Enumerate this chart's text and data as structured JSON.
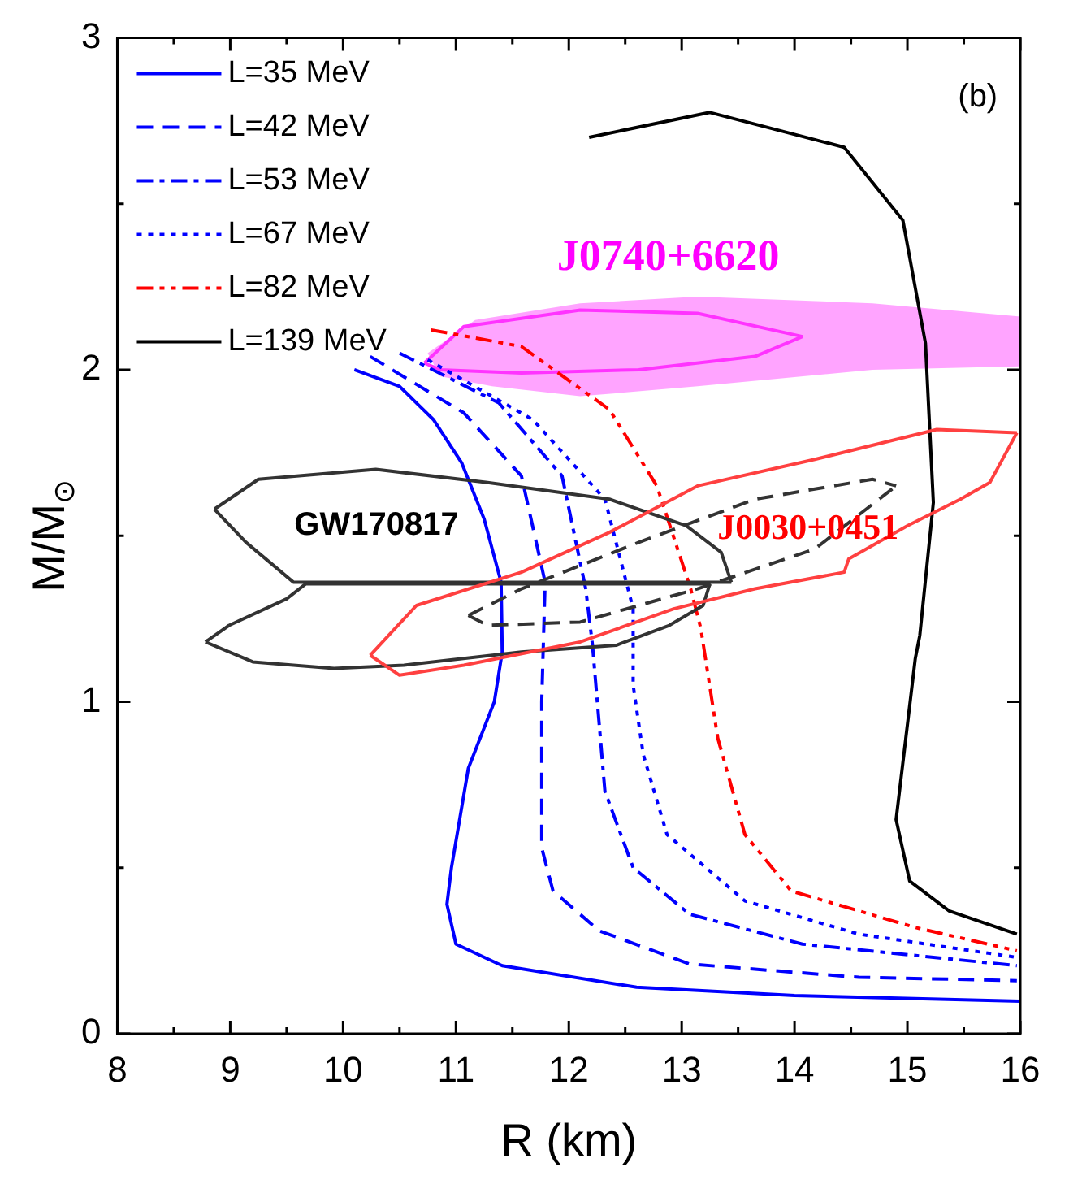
{
  "chart_data": {
    "type": "line",
    "xlabel": "R (km)",
    "ylabel": "M/M$_{⊙}$",
    "xlim": [
      8,
      16
    ],
    "ylim": [
      0,
      3
    ],
    "xticks": [
      8,
      {
        "value": 8.5,
        "label": null
      },
      9,
      {
        "value": 9.5,
        "label": null
      },
      10,
      {
        "value": 10.5,
        "label": null
      },
      11,
      {
        "value": 11.5,
        "label": null
      },
      12,
      {
        "value": 12.5,
        "label": null
      },
      13,
      {
        "value": 13.5,
        "label": null
      },
      14,
      {
        "value": 14.5,
        "label": null
      },
      15,
      {
        "value": 15.5,
        "label": null
      },
      16
    ],
    "yticks": [
      0,
      {
        "value": 0.5,
        "label": null
      },
      1,
      {
        "value": 1.5,
        "label": null
      },
      2,
      {
        "value": 2.5,
        "label": null
      },
      3
    ],
    "legend": "top left",
    "marker": "none",
    "series": [
      {
        "type": "area",
        "color": "#ff77ff",
        "x": [
          10.75,
          11.17,
          12.1,
          13.14,
          14.69,
          16,
          16,
          14.69,
          13.14,
          12.1,
          11.32,
          10.86,
          10.75
        ],
        "values": [
          2.05,
          2.15,
          2.2,
          2.22,
          2.2,
          2.16,
          2.01,
          2.0,
          1.95,
          1.92,
          1.95,
          1.98,
          2.05
        ]
      },
      {
        "color": "#ff33ff",
        "line_style": "solid",
        "x": [
          10.72,
          11.07,
          12.1,
          13.14,
          14.07
        ],
        "values": [
          2.02,
          2.13,
          2.18,
          2.17,
          2.1
        ]
      },
      {
        "color": "#ff33ff",
        "line_style": "solid",
        "x": [
          10.72,
          10.86,
          11.58,
          12.62,
          13.65,
          14.07
        ],
        "values": [
          2.02,
          2.0,
          1.99,
          2.0,
          2.04,
          2.1
        ]
      },
      {
        "name": "L=35 MeV",
        "color": "#0000ff",
        "line_style": "solid",
        "x": [
          10.1,
          10.5,
          10.8,
          11.05,
          11.25,
          11.4,
          11.41,
          11.34,
          11.11,
          10.96,
          10.92,
          11.0,
          11.41,
          12.6,
          14,
          16
        ],
        "values": [
          2.0,
          1.95,
          1.85,
          1.72,
          1.55,
          1.36,
          1.15,
          1.0,
          0.8,
          0.5,
          0.39,
          0.27,
          0.205,
          0.14,
          0.115,
          0.098
        ]
      },
      {
        "name": "L=42 MeV",
        "color": "#0000ff",
        "line_style": "dashed",
        "x": [
          10.24,
          11.07,
          11.58,
          11.79,
          11.76,
          11.76,
          11.86,
          12.27,
          13.07,
          14.57,
          15.97
        ],
        "values": [
          2.04,
          1.87,
          1.68,
          1.36,
          1.0,
          0.56,
          0.43,
          0.31,
          0.21,
          0.17,
          0.16
        ]
      },
      {
        "name": "L=53 MeV",
        "color": "#0000ff",
        "line_style": "dashdot",
        "x": [
          10.5,
          11.38,
          11.94,
          12.15,
          12.21,
          12.32,
          12.57,
          13.07,
          14.07,
          15.97
        ],
        "values": [
          2.05,
          1.9,
          1.68,
          1.34,
          1.17,
          0.73,
          0.5,
          0.36,
          0.27,
          0.205
        ]
      },
      {
        "name": "L=67 MeV",
        "color": "#0000ff",
        "line_style": "dotted",
        "x": [
          10.75,
          11.68,
          12.32,
          12.57,
          12.57,
          12.66,
          12.87,
          13.56,
          14.57,
          15.97
        ],
        "values": [
          2.03,
          1.85,
          1.61,
          1.28,
          1.05,
          0.84,
          0.6,
          0.4,
          0.3,
          0.23
        ]
      },
      {
        "name": "L=82 MeV",
        "color": "#ff0000",
        "line_style": "dashdotdot",
        "x": [
          10.78,
          11.58,
          12.36,
          12.78,
          13.08,
          13.17,
          13.32,
          13.56,
          13.97,
          15.07,
          15.97
        ],
        "values": [
          2.12,
          2.07,
          1.88,
          1.65,
          1.34,
          1.22,
          0.89,
          0.6,
          0.43,
          0.32,
          0.25
        ]
      },
      {
        "name": "L=139 MeV",
        "color": "#000000",
        "line_style": "solid",
        "x": [
          12.18,
          13.25,
          14.44,
          14.96,
          15.16,
          15.23,
          15.11,
          15.07,
          14.9,
          15.02,
          15.37,
          15.97
        ],
        "values": [
          2.7,
          2.775,
          2.67,
          2.45,
          2.08,
          1.6,
          1.2,
          1.13,
          0.645,
          0.46,
          0.37,
          0.3
        ]
      },
      {
        "color": "#333333",
        "line_style": "solid",
        "x": [
          8.86,
          9.25,
          10.29,
          11.28,
          12.36,
          13.04,
          13.35,
          13.44
        ],
        "values": [
          1.58,
          1.67,
          1.7,
          1.66,
          1.61,
          1.53,
          1.45,
          1.36
        ]
      },
      {
        "color": "#333333",
        "line_style": "solid",
        "x": [
          8.86,
          9.14,
          9.56,
          13.44
        ],
        "values": [
          1.58,
          1.48,
          1.36,
          1.36
        ]
      },
      {
        "color": "#333333",
        "line_style": "solid",
        "x": [
          8.78,
          8.99,
          9.5,
          9.67,
          13.25
        ],
        "values": [
          1.18,
          1.23,
          1.31,
          1.355,
          1.355
        ]
      },
      {
        "color": "#333333",
        "line_style": "solid",
        "x": [
          8.78,
          9.2,
          9.92,
          10.54,
          11.58,
          12.42,
          12.89,
          13.19,
          13.25
        ],
        "values": [
          1.18,
          1.12,
          1.1,
          1.11,
          1.15,
          1.17,
          1.23,
          1.29,
          1.355
        ]
      },
      {
        "color": "#ff4040",
        "line_style": "solid",
        "x": [
          10.24,
          10.65,
          11.58,
          12.36,
          13.14,
          14.18,
          15.26,
          15.97
        ],
        "values": [
          1.14,
          1.29,
          1.39,
          1.51,
          1.65,
          1.73,
          1.82,
          1.81
        ]
      },
      {
        "color": "#ff4040",
        "line_style": "solid",
        "x": [
          10.24,
          10.5,
          11.07,
          12.1,
          12.93,
          13.65,
          14.44,
          14.48,
          15.0,
          15.47,
          15.73,
          15.97
        ],
        "values": [
          1.14,
          1.08,
          1.11,
          1.18,
          1.28,
          1.34,
          1.39,
          1.43,
          1.53,
          1.61,
          1.66,
          1.81
        ]
      },
      {
        "color": "#333333",
        "line_style": "dashed",
        "x": [
          11.11,
          11.58,
          12.62,
          13.65,
          14.69,
          14.9
        ],
        "values": [
          1.26,
          1.34,
          1.48,
          1.61,
          1.67,
          1.65
        ]
      },
      {
        "color": "#333333",
        "line_style": "dashed",
        "x": [
          11.11,
          11.28,
          12.1,
          13.14,
          14.18,
          14.9
        ],
        "values": [
          1.26,
          1.23,
          1.24,
          1.34,
          1.46,
          1.65
        ]
      }
    ],
    "annotations": [
      "(b)",
      "J0740+6620",
      "GW170817",
      "J0030+0451"
    ]
  }
}
